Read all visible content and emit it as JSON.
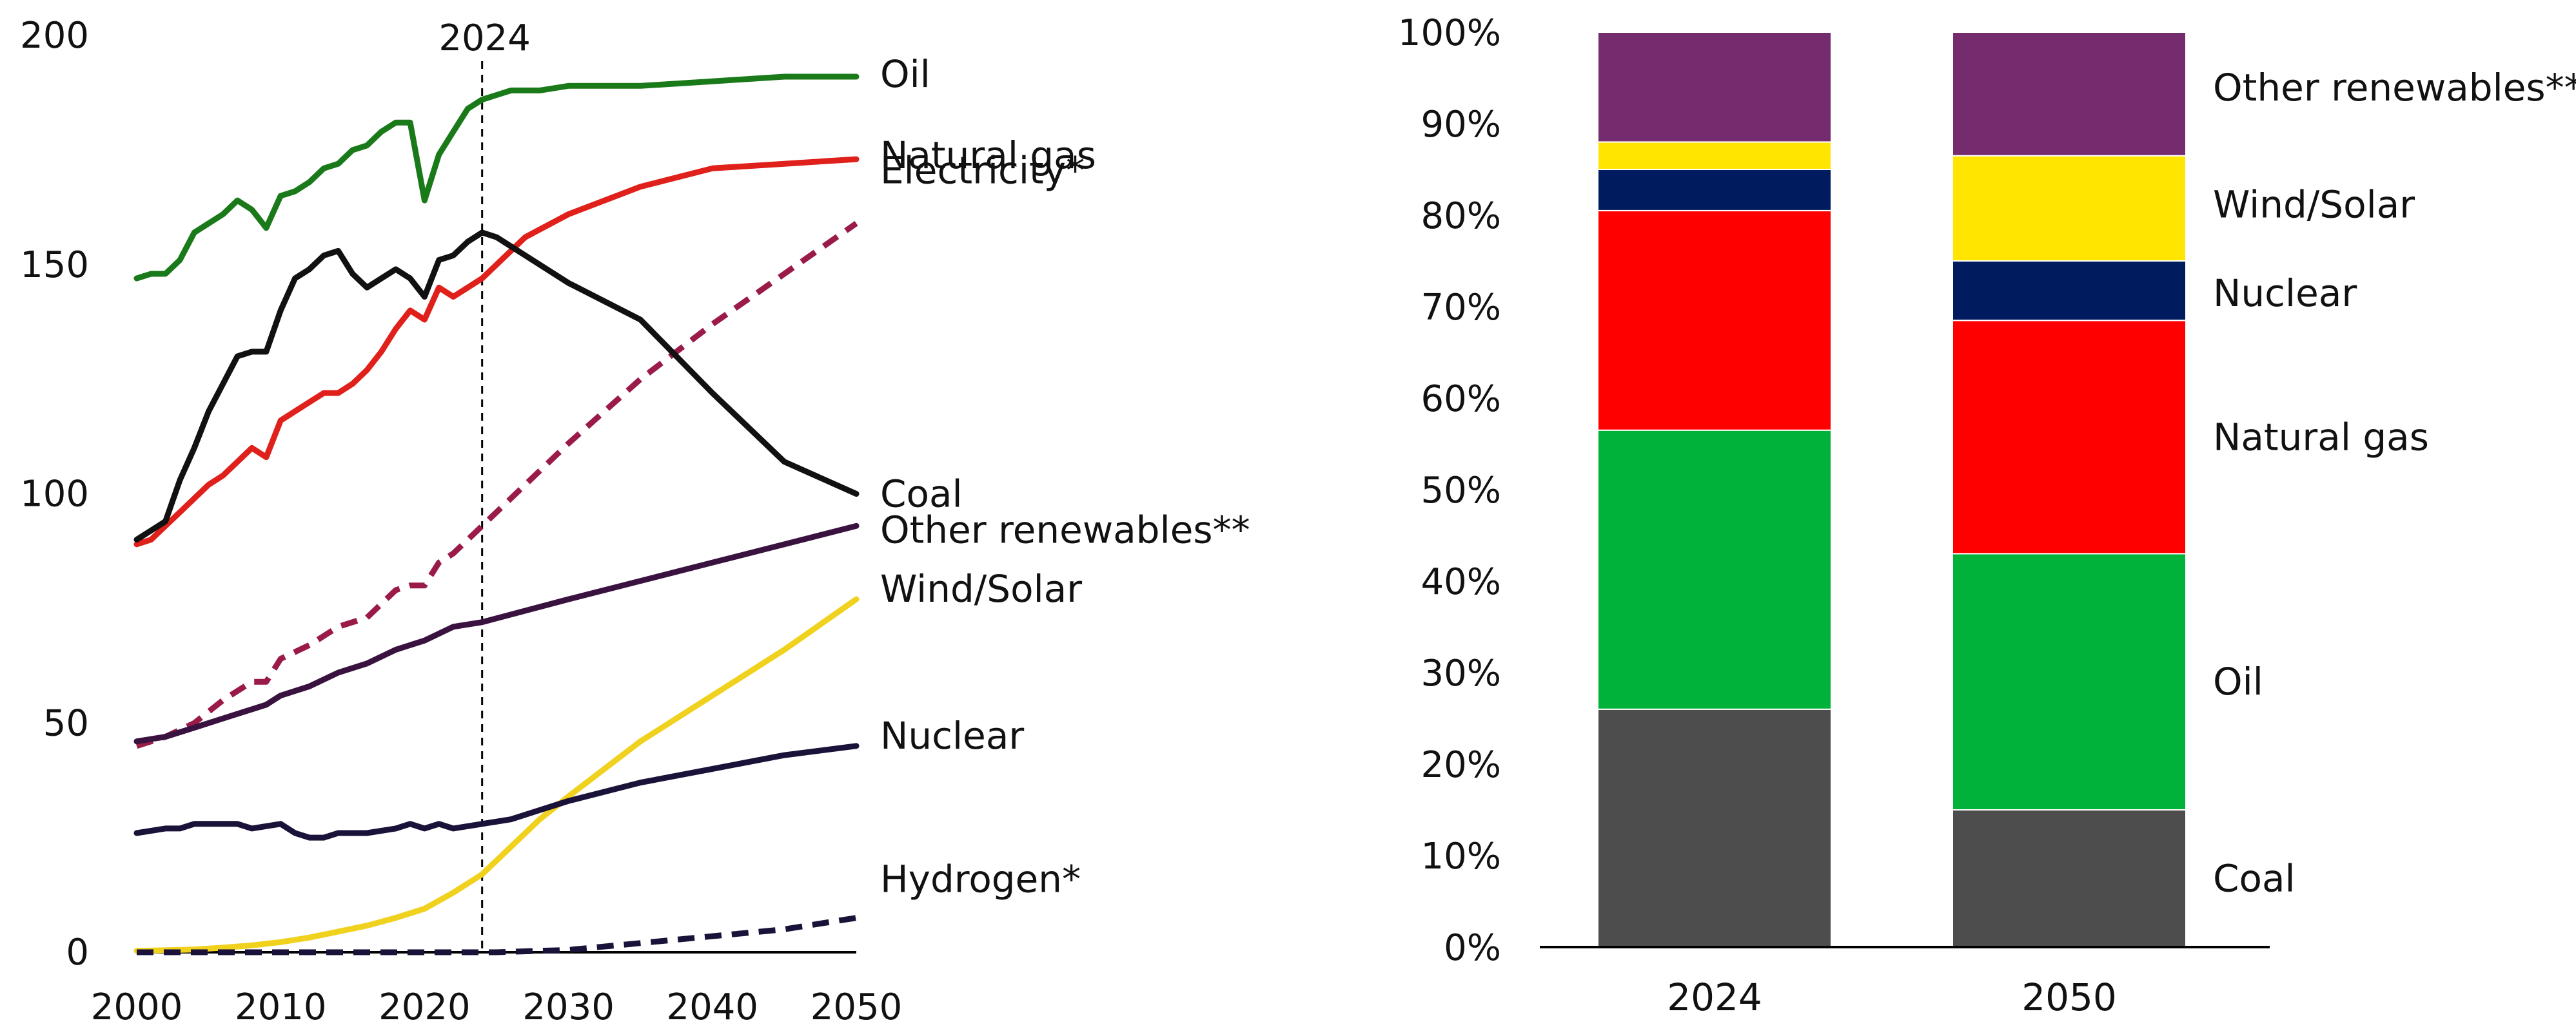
{
  "chart_data": [
    {
      "type": "line",
      "title": "",
      "xlabel": "",
      "ylabel": "",
      "xlim": [
        2000,
        2050
      ],
      "ylim": [
        0,
        200
      ],
      "xticks": [
        2000,
        2010,
        2020,
        2030,
        2040,
        2050
      ],
      "yticks": [
        0,
        50,
        100,
        150,
        200
      ],
      "grid": false,
      "marker_line": {
        "x": 2024,
        "label": "2024"
      },
      "series": [
        {
          "name": "Oil",
          "label": "Oil",
          "color": "#1a7a1a",
          "dash": false,
          "points": [
            [
              2000,
              147
            ],
            [
              2001,
              148
            ],
            [
              2002,
              148
            ],
            [
              2003,
              151
            ],
            [
              2004,
              157
            ],
            [
              2005,
              159
            ],
            [
              2006,
              161
            ],
            [
              2007,
              164
            ],
            [
              2008,
              162
            ],
            [
              2009,
              158
            ],
            [
              2010,
              165
            ],
            [
              2011,
              166
            ],
            [
              2012,
              168
            ],
            [
              2013,
              171
            ],
            [
              2014,
              172
            ],
            [
              2015,
              175
            ],
            [
              2016,
              176
            ],
            [
              2017,
              179
            ],
            [
              2018,
              181
            ],
            [
              2019,
              181
            ],
            [
              2020,
              164
            ],
            [
              2021,
              174
            ],
            [
              2022,
              179
            ],
            [
              2023,
              184
            ],
            [
              2024,
              186
            ],
            [
              2025,
              187
            ],
            [
              2026,
              188
            ],
            [
              2028,
              188
            ],
            [
              2030,
              189
            ],
            [
              2035,
              189
            ],
            [
              2040,
              190
            ],
            [
              2045,
              191
            ],
            [
              2050,
              191
            ]
          ]
        },
        {
          "name": "Natural gas",
          "label": "Natural gas",
          "color": "#e0201b",
          "dash": false,
          "points": [
            [
              2000,
              89
            ],
            [
              2001,
              90
            ],
            [
              2002,
              93
            ],
            [
              2003,
              96
            ],
            [
              2004,
              99
            ],
            [
              2005,
              102
            ],
            [
              2006,
              104
            ],
            [
              2007,
              107
            ],
            [
              2008,
              110
            ],
            [
              2009,
              108
            ],
            [
              2010,
              116
            ],
            [
              2011,
              118
            ],
            [
              2012,
              120
            ],
            [
              2013,
              122
            ],
            [
              2014,
              122
            ],
            [
              2015,
              124
            ],
            [
              2016,
              127
            ],
            [
              2017,
              131
            ],
            [
              2018,
              136
            ],
            [
              2019,
              140
            ],
            [
              2020,
              138
            ],
            [
              2021,
              145
            ],
            [
              2022,
              143
            ],
            [
              2023,
              145
            ],
            [
              2024,
              147
            ],
            [
              2025,
              150
            ],
            [
              2027,
              156
            ],
            [
              2030,
              161
            ],
            [
              2035,
              167
            ],
            [
              2040,
              171
            ],
            [
              2045,
              172
            ],
            [
              2050,
              173
            ]
          ]
        },
        {
          "name": "Electricity*",
          "label": "Electricity*",
          "color": "#9a1a4a",
          "dash": true,
          "points": [
            [
              2000,
              45
            ],
            [
              2002,
              47
            ],
            [
              2004,
              50
            ],
            [
              2006,
              55
            ],
            [
              2008,
              59
            ],
            [
              2009,
              59
            ],
            [
              2010,
              64
            ],
            [
              2012,
              67
            ],
            [
              2014,
              71
            ],
            [
              2016,
              73
            ],
            [
              2018,
              79
            ],
            [
              2019,
              80
            ],
            [
              2020,
              80
            ],
            [
              2021,
              85
            ],
            [
              2022,
              87
            ],
            [
              2024,
              93
            ],
            [
              2026,
              99
            ],
            [
              2028,
              105
            ],
            [
              2030,
              111
            ],
            [
              2035,
              125
            ],
            [
              2040,
              137
            ],
            [
              2045,
              148
            ],
            [
              2050,
              159
            ]
          ]
        },
        {
          "name": "Coal",
          "label": "Coal",
          "color": "#111111",
          "dash": false,
          "points": [
            [
              2000,
              90
            ],
            [
              2001,
              92
            ],
            [
              2002,
              94
            ],
            [
              2003,
              103
            ],
            [
              2004,
              110
            ],
            [
              2005,
              118
            ],
            [
              2006,
              124
            ],
            [
              2007,
              130
            ],
            [
              2008,
              131
            ],
            [
              2009,
              131
            ],
            [
              2010,
              140
            ],
            [
              2011,
              147
            ],
            [
              2012,
              149
            ],
            [
              2013,
              152
            ],
            [
              2014,
              153
            ],
            [
              2015,
              148
            ],
            [
              2016,
              145
            ],
            [
              2017,
              147
            ],
            [
              2018,
              149
            ],
            [
              2019,
              147
            ],
            [
              2020,
              143
            ],
            [
              2021,
              151
            ],
            [
              2022,
              152
            ],
            [
              2023,
              155
            ],
            [
              2024,
              157
            ],
            [
              2025,
              156
            ],
            [
              2027,
              152
            ],
            [
              2030,
              146
            ],
            [
              2035,
              138
            ],
            [
              2040,
              122
            ],
            [
              2045,
              107
            ],
            [
              2050,
              100
            ]
          ]
        },
        {
          "name": "Other renewables**",
          "label": "Other renewables**",
          "color": "#3a1240",
          "dash": false,
          "points": [
            [
              2000,
              46
            ],
            [
              2002,
              47
            ],
            [
              2004,
              49
            ],
            [
              2006,
              51
            ],
            [
              2008,
              53
            ],
            [
              2009,
              54
            ],
            [
              2010,
              56
            ],
            [
              2012,
              58
            ],
            [
              2014,
              61
            ],
            [
              2016,
              63
            ],
            [
              2018,
              66
            ],
            [
              2020,
              68
            ],
            [
              2022,
              71
            ],
            [
              2024,
              72
            ],
            [
              2030,
              77
            ],
            [
              2035,
              81
            ],
            [
              2040,
              85
            ],
            [
              2045,
              89
            ],
            [
              2050,
              93
            ]
          ]
        },
        {
          "name": "Wind/Solar",
          "label": "Wind/Solar",
          "color": "#f0d21e",
          "dash": false,
          "points": [
            [
              2000,
              0.3
            ],
            [
              2004,
              0.6
            ],
            [
              2006,
              1
            ],
            [
              2008,
              1.5
            ],
            [
              2010,
              2.2
            ],
            [
              2012,
              3.2
            ],
            [
              2014,
              4.5
            ],
            [
              2016,
              5.8
            ],
            [
              2018,
              7.5
            ],
            [
              2020,
              9.5
            ],
            [
              2022,
              13
            ],
            [
              2024,
              17
            ],
            [
              2026,
              23
            ],
            [
              2028,
              29
            ],
            [
              2030,
              34
            ],
            [
              2035,
              46
            ],
            [
              2040,
              56
            ],
            [
              2045,
              66
            ],
            [
              2050,
              77
            ]
          ]
        },
        {
          "name": "Nuclear",
          "label": "Nuclear",
          "color": "#1a1238",
          "dash": false,
          "points": [
            [
              2000,
              26
            ],
            [
              2002,
              27
            ],
            [
              2003,
              27
            ],
            [
              2004,
              28
            ],
            [
              2006,
              28
            ],
            [
              2007,
              28
            ],
            [
              2008,
              27
            ],
            [
              2010,
              28
            ],
            [
              2011,
              26
            ],
            [
              2012,
              25
            ],
            [
              2013,
              25
            ],
            [
              2014,
              26
            ],
            [
              2016,
              26
            ],
            [
              2018,
              27
            ],
            [
              2019,
              28
            ],
            [
              2020,
              27
            ],
            [
              2021,
              28
            ],
            [
              2022,
              27
            ],
            [
              2024,
              28
            ],
            [
              2026,
              29
            ],
            [
              2028,
              31
            ],
            [
              2030,
              33
            ],
            [
              2035,
              37
            ],
            [
              2040,
              40
            ],
            [
              2045,
              43
            ],
            [
              2050,
              45
            ]
          ]
        },
        {
          "name": "Hydrogen*",
          "label": "Hydrogen*",
          "color": "#1a1238",
          "dash": true,
          "points": [
            [
              2000,
              0
            ],
            [
              2025,
              0
            ],
            [
              2030,
              0.5
            ],
            [
              2035,
              2
            ],
            [
              2040,
              3.5
            ],
            [
              2045,
              5
            ],
            [
              2050,
              7.5
            ]
          ]
        }
      ]
    },
    {
      "type": "bar",
      "stacked": true,
      "title": "",
      "xlabel": "",
      "ylabel": "",
      "ylim": [
        0,
        100
      ],
      "yticks": [
        "0%",
        "10%",
        "20%",
        "30%",
        "40%",
        "50%",
        "60%",
        "70%",
        "80%",
        "90%",
        "100%"
      ],
      "grid": false,
      "categories": [
        "2024",
        "2050"
      ],
      "series": [
        {
          "name": "Coal",
          "label": "Coal",
          "color": "#4d4d4d",
          "values": [
            26,
            15
          ]
        },
        {
          "name": "Oil",
          "label": "Oil",
          "color": "#00b13a",
          "values": [
            30.5,
            28
          ]
        },
        {
          "name": "Natural gas",
          "label": "Natural gas",
          "color": "#ff0000",
          "values": [
            24,
            25.5
          ]
        },
        {
          "name": "Nuclear",
          "label": "Nuclear",
          "color": "#001c5e",
          "values": [
            4.5,
            6.5
          ]
        },
        {
          "name": "Wind/Solar",
          "label": "Wind/Solar",
          "color": "#ffe500",
          "values": [
            3,
            11.5
          ]
        },
        {
          "name": "Other renewables**",
          "label": "Other renewables**",
          "color": "#742c6e",
          "values": [
            12,
            13.5
          ]
        }
      ]
    }
  ]
}
